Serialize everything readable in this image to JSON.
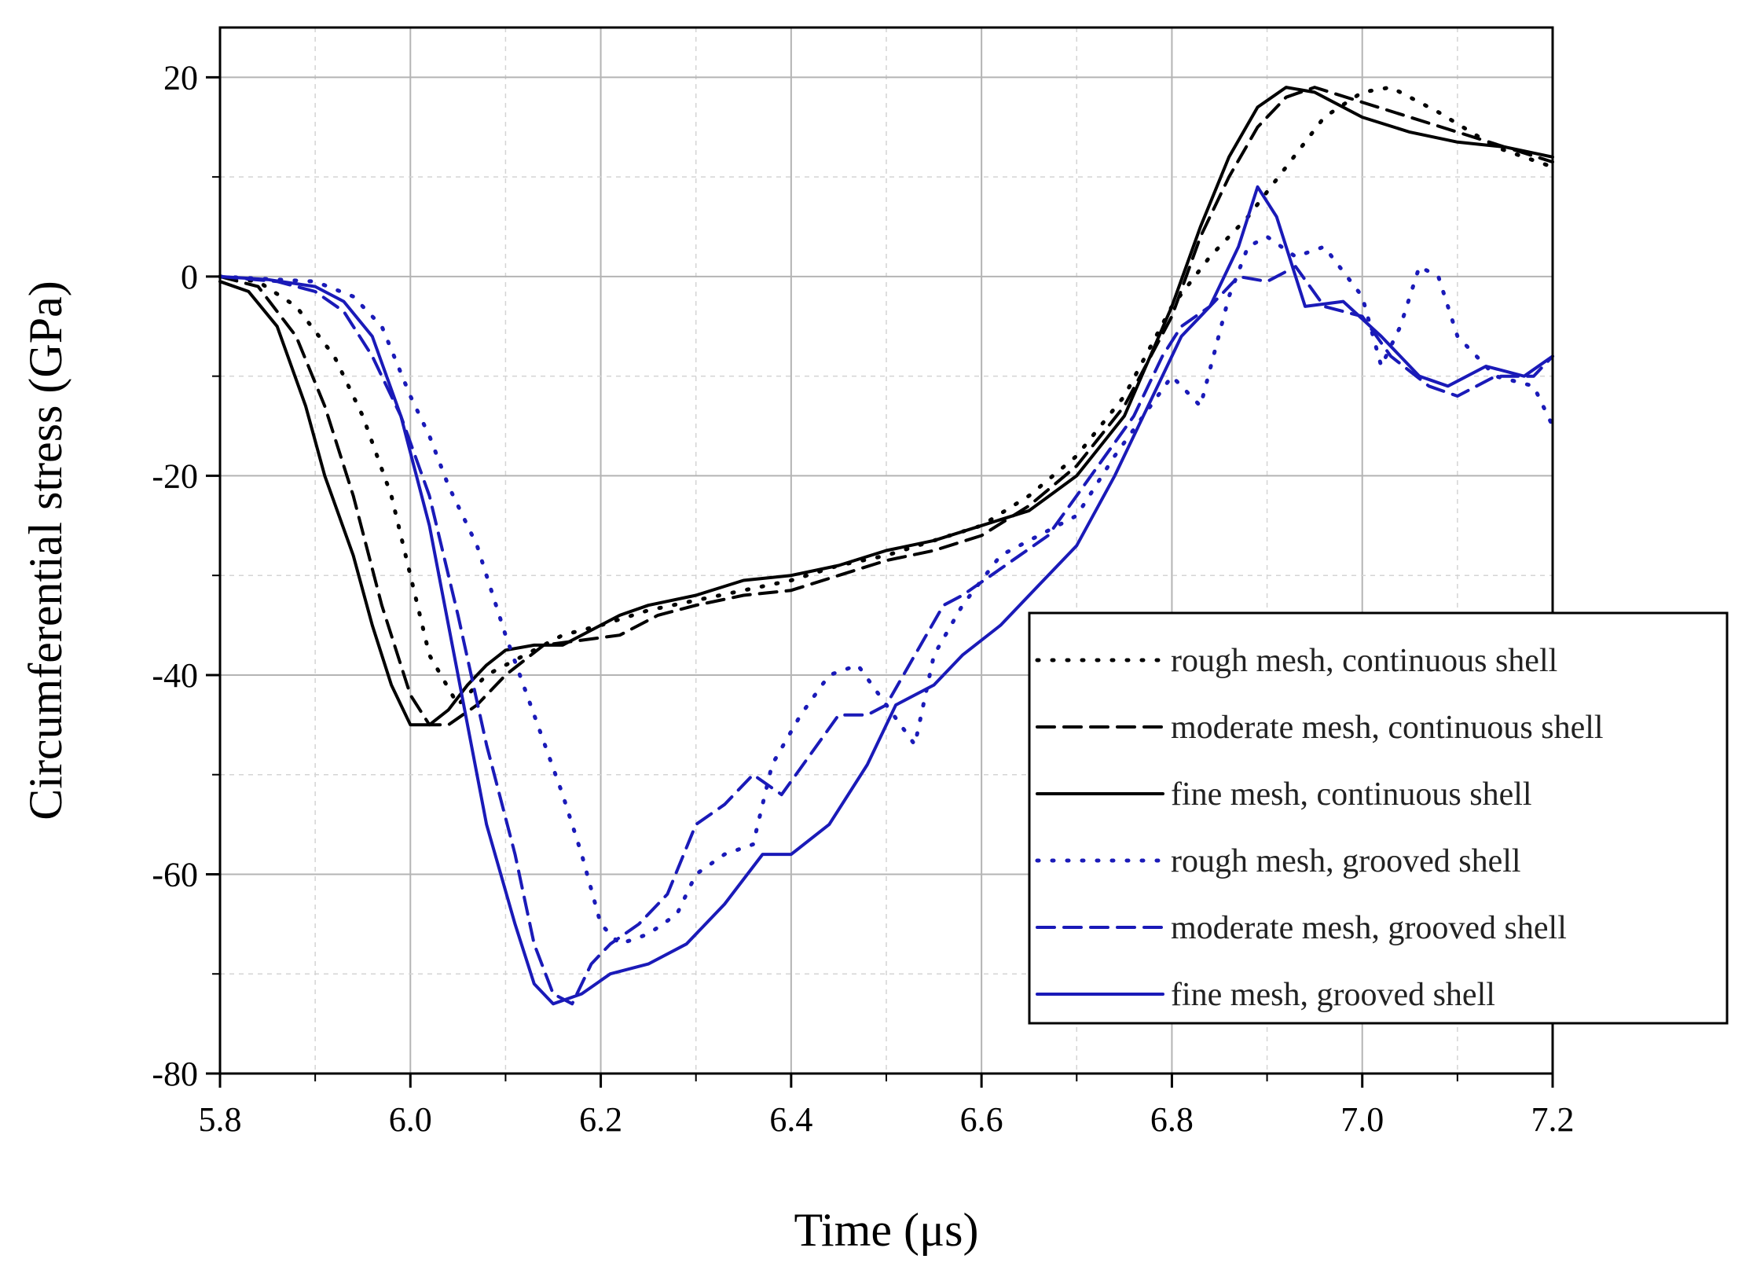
{
  "chart_data": {
    "type": "line",
    "title": "",
    "xlabel": "Time (μs)",
    "ylabel": "Circumferential stress (GPa)",
    "xlim": [
      5.8,
      7.2
    ],
    "ylim": [
      -80,
      25
    ],
    "xticks": [
      5.8,
      6.0,
      6.2,
      6.4,
      6.6,
      6.8,
      7.0,
      7.2
    ],
    "xtick_labels": [
      "5.8",
      "6.0",
      "6.2",
      "6.4",
      "6.6",
      "6.8",
      "7.0",
      "7.2"
    ],
    "yticks": [
      -80,
      -60,
      -40,
      -20,
      0,
      20
    ],
    "ytick_labels": [
      "-80",
      "-60",
      "-40",
      "-20",
      "0",
      "20"
    ],
    "grid": true,
    "legend_position": "center-right",
    "colors": {
      "black": "#000000",
      "blue": "#1a1ab8"
    },
    "series": [
      {
        "name": "rough mesh, continuous shell",
        "color": "black",
        "dash": "dotted",
        "points": [
          [
            5.8,
            0
          ],
          [
            5.84,
            -0.5
          ],
          [
            5.88,
            -3
          ],
          [
            5.92,
            -8
          ],
          [
            5.95,
            -14
          ],
          [
            5.98,
            -22
          ],
          [
            6.0,
            -30
          ],
          [
            6.02,
            -38
          ],
          [
            6.05,
            -43
          ],
          [
            6.08,
            -40
          ],
          [
            6.12,
            -38
          ],
          [
            6.16,
            -36
          ],
          [
            6.2,
            -35
          ],
          [
            6.25,
            -33.5
          ],
          [
            6.3,
            -32.5
          ],
          [
            6.35,
            -31.5
          ],
          [
            6.4,
            -30.5
          ],
          [
            6.45,
            -29
          ],
          [
            6.5,
            -28
          ],
          [
            6.55,
            -26.5
          ],
          [
            6.6,
            -25
          ],
          [
            6.65,
            -22
          ],
          [
            6.7,
            -18
          ],
          [
            6.75,
            -12
          ],
          [
            6.8,
            -3
          ],
          [
            6.84,
            2
          ],
          [
            6.88,
            6
          ],
          [
            6.92,
            11
          ],
          [
            6.96,
            16
          ],
          [
            7.0,
            18.5
          ],
          [
            7.03,
            19
          ],
          [
            7.08,
            16.5
          ],
          [
            7.14,
            13
          ],
          [
            7.2,
            11
          ]
        ]
      },
      {
        "name": "moderate mesh, continuous shell",
        "color": "black",
        "dash": "dashed",
        "points": [
          [
            5.8,
            0
          ],
          [
            5.84,
            -1
          ],
          [
            5.88,
            -6
          ],
          [
            5.91,
            -13
          ],
          [
            5.94,
            -22
          ],
          [
            5.97,
            -33
          ],
          [
            6.0,
            -42
          ],
          [
            6.02,
            -45
          ],
          [
            6.04,
            -45
          ],
          [
            6.07,
            -43
          ],
          [
            6.1,
            -40
          ],
          [
            6.14,
            -37
          ],
          [
            6.18,
            -36.5
          ],
          [
            6.22,
            -36
          ],
          [
            6.26,
            -34
          ],
          [
            6.3,
            -33
          ],
          [
            6.35,
            -32
          ],
          [
            6.4,
            -31.5
          ],
          [
            6.45,
            -30
          ],
          [
            6.5,
            -28.5
          ],
          [
            6.55,
            -27.5
          ],
          [
            6.6,
            -26
          ],
          [
            6.65,
            -23
          ],
          [
            6.7,
            -19
          ],
          [
            6.75,
            -13
          ],
          [
            6.8,
            -4
          ],
          [
            6.83,
            4
          ],
          [
            6.86,
            10
          ],
          [
            6.89,
            15
          ],
          [
            6.92,
            18
          ],
          [
            6.95,
            19
          ],
          [
            7.0,
            17.5
          ],
          [
            7.05,
            16
          ],
          [
            7.1,
            14.5
          ],
          [
            7.15,
            13
          ],
          [
            7.2,
            11.5
          ]
        ]
      },
      {
        "name": "fine mesh, continuous shell",
        "color": "black",
        "dash": "solid",
        "points": [
          [
            5.8,
            -0.5
          ],
          [
            5.83,
            -1.5
          ],
          [
            5.86,
            -5
          ],
          [
            5.89,
            -13
          ],
          [
            5.91,
            -20
          ],
          [
            5.94,
            -28
          ],
          [
            5.96,
            -35
          ],
          [
            5.98,
            -41
          ],
          [
            6.0,
            -45
          ],
          [
            6.02,
            -45
          ],
          [
            6.04,
            -43.5
          ],
          [
            6.06,
            -41
          ],
          [
            6.08,
            -39
          ],
          [
            6.1,
            -37.5
          ],
          [
            6.13,
            -37
          ],
          [
            6.16,
            -37
          ],
          [
            6.19,
            -35.5
          ],
          [
            6.22,
            -34
          ],
          [
            6.25,
            -33
          ],
          [
            6.3,
            -32
          ],
          [
            6.35,
            -30.5
          ],
          [
            6.4,
            -30
          ],
          [
            6.45,
            -29
          ],
          [
            6.5,
            -27.5
          ],
          [
            6.55,
            -26.5
          ],
          [
            6.6,
            -25
          ],
          [
            6.65,
            -23.5
          ],
          [
            6.7,
            -20
          ],
          [
            6.75,
            -14
          ],
          [
            6.8,
            -3
          ],
          [
            6.83,
            5
          ],
          [
            6.86,
            12
          ],
          [
            6.89,
            17
          ],
          [
            6.92,
            19
          ],
          [
            6.95,
            18.5
          ],
          [
            7.0,
            16
          ],
          [
            7.05,
            14.5
          ],
          [
            7.1,
            13.5
          ],
          [
            7.15,
            13
          ],
          [
            7.2,
            12
          ]
        ]
      },
      {
        "name": "rough mesh, grooved shell",
        "color": "blue",
        "dash": "dotted",
        "points": [
          [
            5.8,
            0
          ],
          [
            5.9,
            -0.5
          ],
          [
            5.94,
            -2
          ],
          [
            5.97,
            -5
          ],
          [
            6.0,
            -12
          ],
          [
            6.02,
            -16
          ],
          [
            6.04,
            -21
          ],
          [
            6.07,
            -27
          ],
          [
            6.1,
            -36
          ],
          [
            6.13,
            -44
          ],
          [
            6.16,
            -52
          ],
          [
            6.18,
            -58
          ],
          [
            6.2,
            -65
          ],
          [
            6.22,
            -67
          ],
          [
            6.25,
            -66
          ],
          [
            6.28,
            -64
          ],
          [
            6.3,
            -60
          ],
          [
            6.33,
            -58
          ],
          [
            6.36,
            -57
          ],
          [
            6.38,
            -49
          ],
          [
            6.41,
            -44
          ],
          [
            6.44,
            -40
          ],
          [
            6.47,
            -39
          ],
          [
            6.5,
            -43
          ],
          [
            6.53,
            -47
          ],
          [
            6.55,
            -38
          ],
          [
            6.58,
            -33
          ],
          [
            6.62,
            -28
          ],
          [
            6.66,
            -26
          ],
          [
            6.7,
            -24
          ],
          [
            6.74,
            -18
          ],
          [
            6.77,
            -14
          ],
          [
            6.8,
            -10
          ],
          [
            6.83,
            -13
          ],
          [
            6.86,
            -2
          ],
          [
            6.88,
            3
          ],
          [
            6.9,
            4
          ],
          [
            6.93,
            2
          ],
          [
            6.96,
            3
          ],
          [
            7.0,
            -2
          ],
          [
            7.02,
            -9
          ],
          [
            7.04,
            -5
          ],
          [
            7.06,
            1
          ],
          [
            7.08,
            0
          ],
          [
            7.1,
            -6
          ],
          [
            7.14,
            -10
          ],
          [
            7.18,
            -11
          ],
          [
            7.2,
            -15
          ]
        ]
      },
      {
        "name": "moderate mesh, grooved shell",
        "color": "blue",
        "dash": "dashed",
        "points": [
          [
            5.8,
            0
          ],
          [
            5.86,
            -0.5
          ],
          [
            5.9,
            -1.5
          ],
          [
            5.93,
            -3.5
          ],
          [
            5.96,
            -8
          ],
          [
            5.99,
            -14
          ],
          [
            6.02,
            -22
          ],
          [
            6.05,
            -34
          ],
          [
            6.08,
            -47
          ],
          [
            6.11,
            -58
          ],
          [
            6.13,
            -67
          ],
          [
            6.15,
            -72
          ],
          [
            6.17,
            -73
          ],
          [
            6.19,
            -69
          ],
          [
            6.21,
            -67
          ],
          [
            6.24,
            -65
          ],
          [
            6.27,
            -62
          ],
          [
            6.3,
            -55
          ],
          [
            6.33,
            -53
          ],
          [
            6.36,
            -50
          ],
          [
            6.39,
            -52
          ],
          [
            6.42,
            -48
          ],
          [
            6.45,
            -44
          ],
          [
            6.48,
            -44
          ],
          [
            6.5,
            -43
          ],
          [
            6.53,
            -38
          ],
          [
            6.56,
            -33
          ],
          [
            6.58,
            -32
          ],
          [
            6.61,
            -30
          ],
          [
            6.64,
            -28
          ],
          [
            6.67,
            -26
          ],
          [
            6.7,
            -22
          ],
          [
            6.73,
            -18
          ],
          [
            6.76,
            -14
          ],
          [
            6.79,
            -8
          ],
          [
            6.81,
            -5
          ],
          [
            6.84,
            -3
          ],
          [
            6.87,
            0
          ],
          [
            6.9,
            -0.5
          ],
          [
            6.93,
            1
          ],
          [
            6.96,
            -3
          ],
          [
            7.0,
            -4
          ],
          [
            7.03,
            -8
          ],
          [
            7.07,
            -11
          ],
          [
            7.1,
            -12
          ],
          [
            7.14,
            -10
          ],
          [
            7.18,
            -10
          ],
          [
            7.2,
            -8
          ]
        ]
      },
      {
        "name": "fine mesh, grooved shell",
        "color": "blue",
        "dash": "solid",
        "points": [
          [
            5.8,
            0
          ],
          [
            5.85,
            -0.3
          ],
          [
            5.9,
            -1
          ],
          [
            5.93,
            -2.5
          ],
          [
            5.96,
            -6
          ],
          [
            5.99,
            -14
          ],
          [
            6.02,
            -25
          ],
          [
            6.05,
            -40
          ],
          [
            6.08,
            -55
          ],
          [
            6.11,
            -65
          ],
          [
            6.13,
            -71
          ],
          [
            6.15,
            -73
          ],
          [
            6.18,
            -72
          ],
          [
            6.21,
            -70
          ],
          [
            6.25,
            -69
          ],
          [
            6.29,
            -67
          ],
          [
            6.33,
            -63
          ],
          [
            6.37,
            -58
          ],
          [
            6.4,
            -58
          ],
          [
            6.44,
            -55
          ],
          [
            6.48,
            -49
          ],
          [
            6.51,
            -43
          ],
          [
            6.55,
            -41
          ],
          [
            6.58,
            -38
          ],
          [
            6.62,
            -35
          ],
          [
            6.66,
            -31
          ],
          [
            6.7,
            -27
          ],
          [
            6.74,
            -20
          ],
          [
            6.78,
            -12
          ],
          [
            6.81,
            -6
          ],
          [
            6.84,
            -3
          ],
          [
            6.87,
            3
          ],
          [
            6.89,
            9
          ],
          [
            6.91,
            6
          ],
          [
            6.94,
            -3
          ],
          [
            6.98,
            -2.5
          ],
          [
            7.02,
            -6
          ],
          [
            7.06,
            -10
          ],
          [
            7.09,
            -11
          ],
          [
            7.13,
            -9
          ],
          [
            7.17,
            -10
          ],
          [
            7.2,
            -8
          ]
        ]
      }
    ]
  }
}
